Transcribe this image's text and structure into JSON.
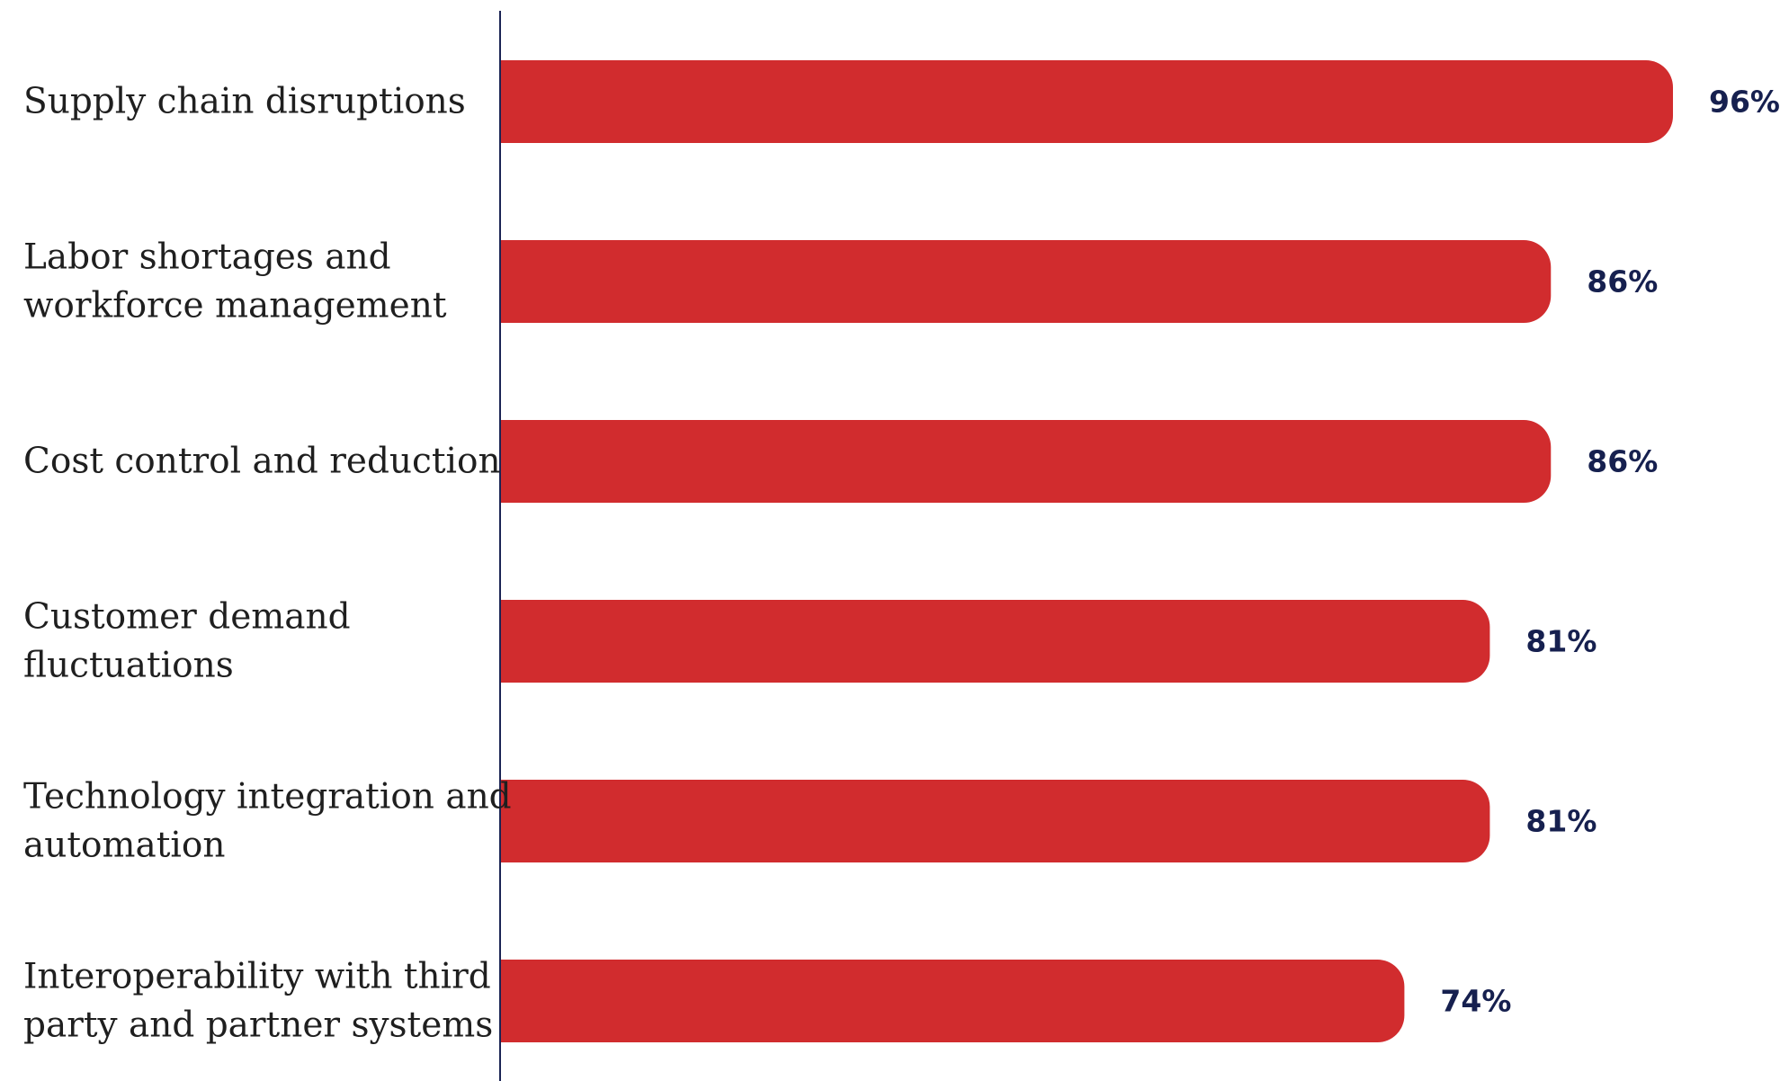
{
  "chart_data": {
    "type": "bar",
    "orientation": "horizontal",
    "categories": [
      "Supply chain disruptions",
      "Labor shortages and workforce management",
      "Cost control and reduction",
      "Customer demand fluctuations",
      "Technology integration and automation",
      "Interoperability with third party and partner systems"
    ],
    "category_label_lines": [
      [
        "Supply chain disruptions"
      ],
      [
        "Labor shortages and",
        "workforce management"
      ],
      [
        "Cost control and reduction"
      ],
      [
        "Customer demand",
        "fluctuations"
      ],
      [
        "Technology integration and",
        "automation"
      ],
      [
        "Interoperability with third",
        "party and partner systems"
      ]
    ],
    "values": [
      96,
      86,
      86,
      81,
      81,
      74
    ],
    "value_labels": [
      "96%",
      "86%",
      "86%",
      "81%",
      "81%",
      "74%"
    ],
    "title": "",
    "xlabel": "",
    "ylabel": "",
    "xlim": [
      0,
      100
    ],
    "grid": false,
    "legend": "none",
    "colors": {
      "bar": "#D12C2E",
      "axis": "#1B2454",
      "category_text": "#1F1F1F",
      "value_text": "#16204F"
    }
  }
}
